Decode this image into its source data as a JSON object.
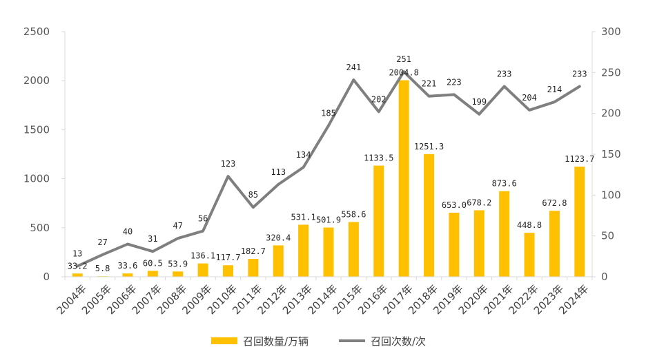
{
  "chart_data": {
    "type": "bar+line",
    "categories": [
      "2004年",
      "2005年",
      "2006年",
      "2007年",
      "2008年",
      "2009年",
      "2010年",
      "2011年",
      "2012年",
      "2013年",
      "2014年",
      "2015年",
      "2016年",
      "2017年",
      "2018年",
      "2019年",
      "2020年",
      "2021年",
      "2022年",
      "2023年",
      "2024年"
    ],
    "series": [
      {
        "name": "召回数量/万辆",
        "type": "bar",
        "axis": "left",
        "color": "#FFC000",
        "values": [
          33.2,
          5.8,
          33.6,
          60.5,
          53.9,
          136.1,
          117.7,
          182.7,
          320.4,
          531.1,
          501.9,
          558.6,
          1133.5,
          2004.8,
          1251.3,
          653.0,
          678.2,
          873.6,
          448.8,
          672.8,
          1123.7
        ],
        "labels": [
          "33.2",
          "5.8",
          "33.6",
          "60.5",
          "53.9",
          "136.1",
          "117.7",
          "182.7",
          "320.4",
          "531.1",
          "501.9",
          "558.6",
          "1133.5",
          "2004.8",
          "1251.3",
          "653.0",
          "678.2",
          "873.6",
          "448.8",
          "672.8",
          "1123.7"
        ]
      },
      {
        "name": "召回次数/次",
        "type": "line",
        "axis": "right",
        "color": "#7F7F7F",
        "values": [
          13,
          27,
          40,
          31,
          47,
          56,
          123,
          85,
          113,
          134,
          185,
          241,
          202,
          251,
          221,
          223,
          199,
          233,
          204,
          214,
          233
        ],
        "labels": [
          "13",
          "27",
          "40",
          "31",
          "47",
          "56",
          "123",
          "85",
          "113",
          "134",
          "185",
          "241",
          "202",
          "251",
          "221",
          "223",
          "199",
          "233",
          "204",
          "214",
          "233"
        ]
      }
    ],
    "y_left": {
      "ylim": [
        0,
        2500
      ],
      "ticks": [
        "0",
        "500",
        "1000",
        "1500",
        "2000",
        "2500"
      ]
    },
    "y_right": {
      "ylim": [
        0,
        300
      ],
      "ticks": [
        "0",
        "50",
        "100",
        "150",
        "200",
        "250",
        "300"
      ]
    },
    "grid": false,
    "legend_position": "bottom"
  }
}
